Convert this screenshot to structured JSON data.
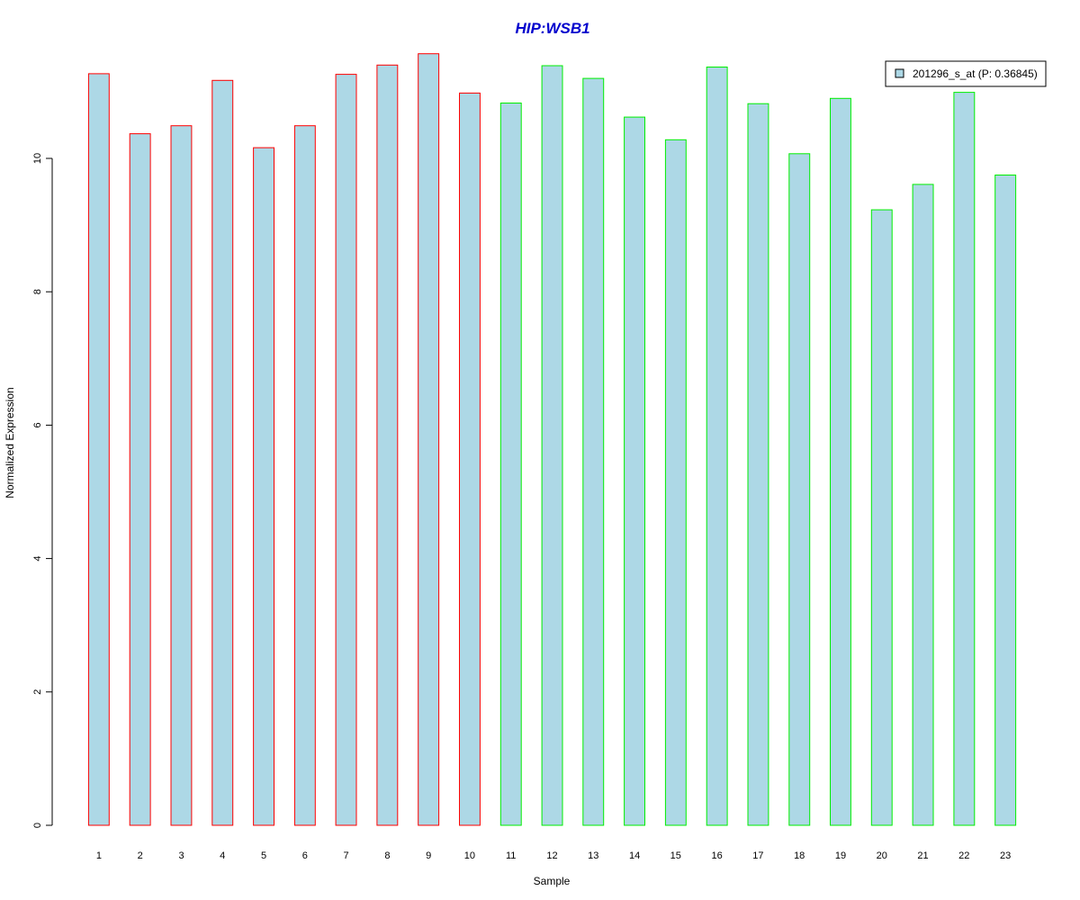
{
  "chart_data": {
    "type": "bar",
    "title": "HIP:WSB1",
    "xlabel": "Sample",
    "ylabel": "Normalized Expression",
    "categories": [
      "1",
      "2",
      "3",
      "4",
      "5",
      "6",
      "7",
      "8",
      "9",
      "10",
      "11",
      "12",
      "13",
      "14",
      "15",
      "16",
      "17",
      "18",
      "19",
      "20",
      "21",
      "22",
      "23"
    ],
    "series": [
      {
        "name": "201296_s_at (P: 0.36845)",
        "values": [
          11.27,
          10.37,
          10.49,
          11.17,
          10.16,
          10.49,
          11.26,
          11.4,
          11.57,
          10.98,
          10.83,
          11.39,
          11.2,
          10.62,
          10.28,
          11.37,
          10.82,
          10.07,
          10.9,
          9.23,
          9.61,
          10.99,
          9.75
        ]
      }
    ],
    "bar_border_colors": [
      "#ff0000",
      "#ff0000",
      "#ff0000",
      "#ff0000",
      "#ff0000",
      "#ff0000",
      "#ff0000",
      "#ff0000",
      "#ff0000",
      "#ff0000",
      "#00ee00",
      "#00ee00",
      "#00ee00",
      "#00ee00",
      "#00ee00",
      "#00ee00",
      "#00ee00",
      "#00ee00",
      "#00ee00",
      "#00ee00",
      "#00ee00",
      "#00ee00",
      "#00ee00"
    ],
    "bar_fill_color": "#add8e6",
    "title_color": "#0000cd",
    "yticks": [
      0,
      2,
      4,
      6,
      8,
      10
    ],
    "ylim": [
      0,
      11.6
    ],
    "grid": false,
    "legend_position": "top-right"
  }
}
